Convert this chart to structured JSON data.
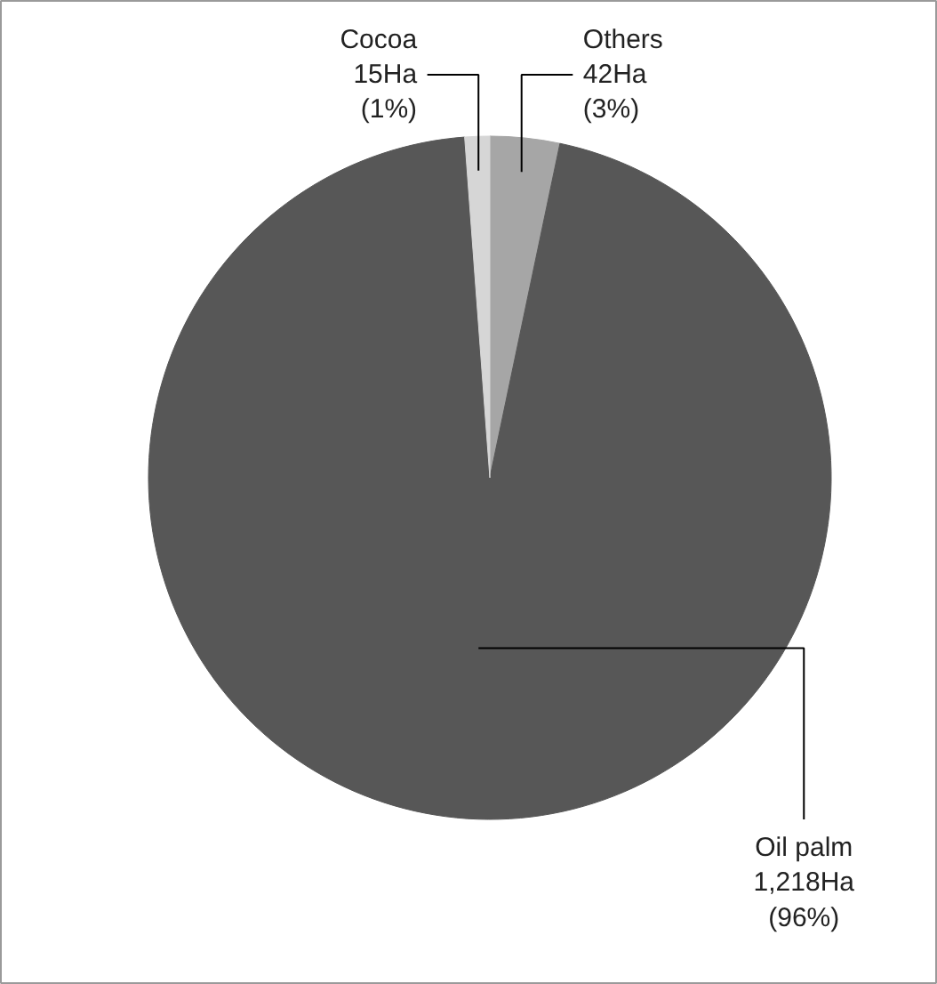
{
  "chart_data": {
    "type": "pie",
    "categories": [
      "Others",
      "Oil palm",
      "Cocoa"
    ],
    "values": [
      42,
      1218,
      15
    ],
    "colors": [
      "#a6a6a6",
      "#575757",
      "#d6d6d6"
    ],
    "value_labels": [
      "42Ha\n(3%)",
      "1,218Ha\n(96%)",
      "15Ha\n(1%)"
    ]
  }
}
